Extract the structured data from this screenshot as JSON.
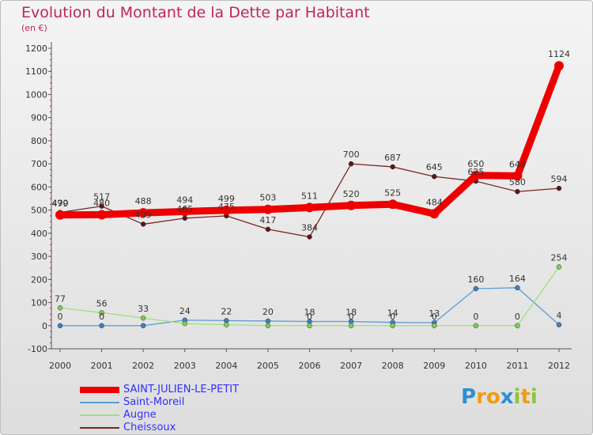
{
  "chart_data": {
    "type": "line",
    "title": "Evolution du Montant de la Dette par Habitant",
    "subtitle": "(en €)",
    "x": [
      "2000",
      "2001",
      "2002",
      "2003",
      "2004",
      "2005",
      "2006",
      "2007",
      "2008",
      "2009",
      "2010",
      "2011",
      "2012"
    ],
    "yticks": [
      -100,
      0,
      100,
      200,
      300,
      400,
      500,
      600,
      700,
      800,
      900,
      1000,
      1100,
      1200
    ],
    "ylim": [
      -100,
      1200
    ],
    "grid": false,
    "legend_position": "bottom-left",
    "series": [
      {
        "name": "Saint-Moreil",
        "color": "#5b9bd5",
        "marker": "#3f7fc0",
        "width": 1.3,
        "values": [
          0,
          0,
          0,
          24,
          22,
          20,
          18,
          18,
          14,
          13,
          160,
          164,
          4
        ],
        "labels": [
          "0",
          "0",
          "",
          "24",
          "22",
          "20",
          "18",
          "18",
          "14",
          "13",
          "160",
          "164",
          "4"
        ]
      },
      {
        "name": "Augne",
        "color": "#9fe07a",
        "marker": "#7ccf52",
        "width": 1.3,
        "values": [
          77,
          56,
          33,
          9,
          4,
          0,
          0,
          0,
          0,
          0,
          0,
          0,
          254
        ],
        "labels": [
          "77",
          "56",
          "33",
          "",
          "",
          "",
          "0",
          "0",
          "0",
          "0",
          "0",
          "0",
          "254"
        ]
      },
      {
        "name": "Cheissoux",
        "color": "#7a2525",
        "marker": "#5e1515",
        "width": 1.3,
        "values": [
          490,
          517,
          439,
          465,
          475,
          417,
          384,
          700,
          687,
          645,
          625,
          580,
          594
        ],
        "labels": [
          "490",
          "517",
          "439",
          "465",
          "475",
          "417",
          "384",
          "700",
          "687",
          "645",
          "625",
          "580",
          "594"
        ]
      },
      {
        "name": "SAINT-JULIEN-LE-PETIT",
        "color": "#ee0000",
        "marker": "#ee0000",
        "width": 9,
        "values": [
          479,
          480,
          488,
          494,
          499,
          503,
          511,
          520,
          525,
          484,
          650,
          648,
          1124
        ],
        "labels": [
          "479",
          "480",
          "488",
          "494",
          "499",
          "503",
          "511",
          "520",
          "525",
          "484",
          "650",
          "648",
          "1124"
        ]
      }
    ]
  },
  "legend": [
    {
      "name": "SAINT-JULIEN-LE-PETIT",
      "color": "#ee0000",
      "text_color": "#3030ff",
      "thickness": 8
    },
    {
      "name": "Saint-Moreil",
      "color": "#5b9bd5",
      "text_color": "#3030ff",
      "thickness": 2
    },
    {
      "name": "Augne",
      "color": "#9fe07a",
      "text_color": "#3030ff",
      "thickness": 2
    },
    {
      "name": "Cheissoux",
      "color": "#7a2525",
      "text_color": "#3030ff",
      "thickness": 2
    }
  ],
  "brand": {
    "letters": [
      "P",
      "r",
      "o",
      "x",
      "i",
      "t",
      "i"
    ],
    "colors": [
      "#2b8fd6",
      "#f39c12",
      "#f39c12",
      "#2b8fd6",
      "#8cc63f",
      "#f39c12",
      "#8cc63f"
    ]
  }
}
